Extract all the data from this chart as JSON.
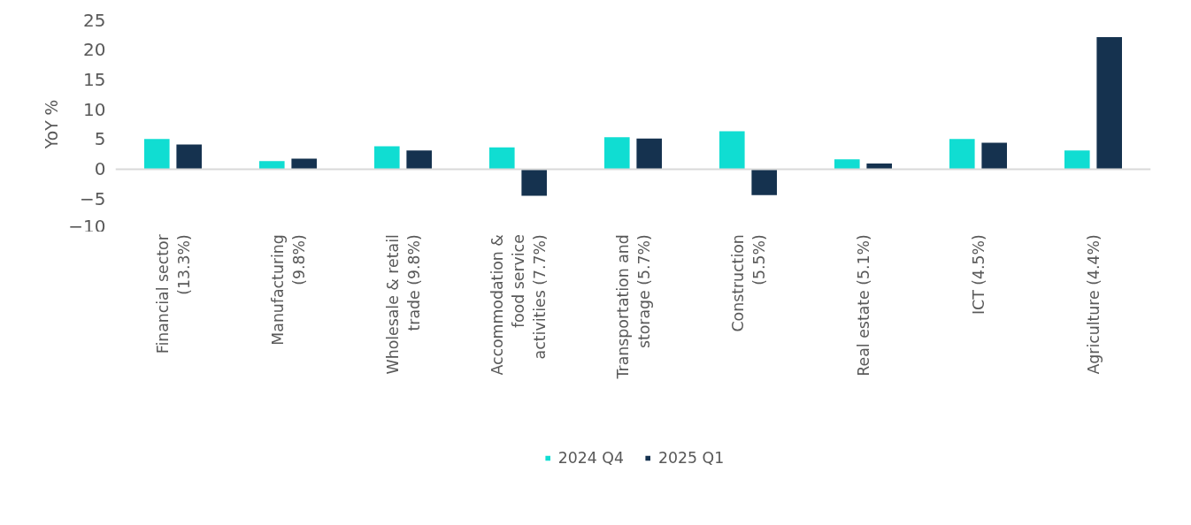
{
  "chart_data": {
    "type": "bar",
    "ylabel": "YoY %",
    "categories": [
      "Financial sector (13.3%)",
      "Manufacturing (9.8%)",
      "Wholesale & retail trade (9.8%)",
      "Accommodation & food service activities (7.7%)",
      "Transportation and storage (5.7%)",
      "Construction (5.5%)",
      "Real estate (5.1%)",
      "ICT (4.5%)",
      "Agriculture (4.4%)"
    ],
    "series": [
      {
        "name": "2024 Q4",
        "color": "#10ddd2",
        "values": [
          5.0,
          1.3,
          3.8,
          3.6,
          5.3,
          6.3,
          1.6,
          5.0,
          3.1
        ]
      },
      {
        "name": "2025 Q1",
        "color": "#15324f",
        "values": [
          4.1,
          1.7,
          3.1,
          -4.5,
          5.1,
          -4.4,
          0.9,
          4.4,
          22.1
        ]
      }
    ],
    "ylim": [
      -10,
      25
    ],
    "yticks": [
      -10,
      -5,
      0,
      5,
      10,
      15,
      20,
      25
    ],
    "legend": "bottom"
  }
}
